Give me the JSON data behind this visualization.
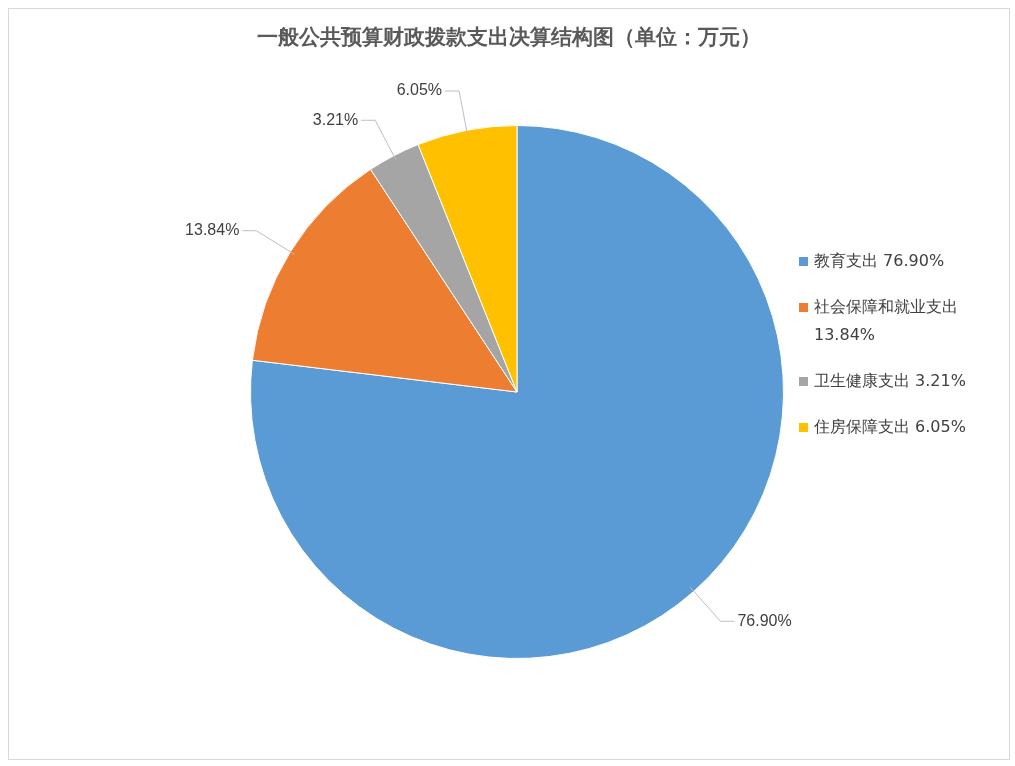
{
  "chart_data": {
    "type": "pie",
    "title": "一般公共预算财政拨款支出决算结构图（单位：万元）",
    "categories": [
      "教育支出",
      "社会保障和就业支出",
      "卫生健康支出",
      "住房保障支出"
    ],
    "values": [
      76.9,
      13.84,
      3.21,
      6.05
    ],
    "value_labels": [
      "76.90%",
      "13.84%",
      "3.21%",
      "6.05%"
    ],
    "colors": [
      "#5b9bd5",
      "#ed7d31",
      "#a5a5a5",
      "#ffc000"
    ],
    "legend": "right"
  }
}
